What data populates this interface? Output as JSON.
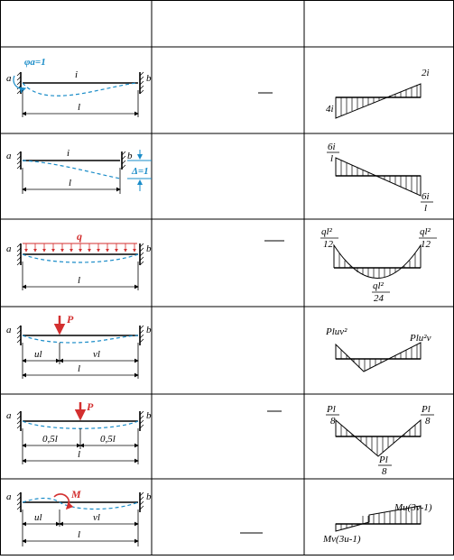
{
  "header": {
    "col1": "",
    "col2": "",
    "col3": ""
  },
  "rows": [
    {
      "labels": {
        "a": "a",
        "b": "b",
        "i": "i",
        "l": "l",
        "rotation": "φa=1"
      },
      "moments": {
        "left": "4i",
        "right": "2i"
      }
    },
    {
      "labels": {
        "a": "a",
        "b": "b",
        "i": "i",
        "l": "l",
        "displacement": "Δ=1"
      },
      "moments": {
        "left_num": "6i",
        "left_den": "l",
        "right_num": "6i",
        "right_den": "l"
      }
    },
    {
      "labels": {
        "a": "a",
        "b": "b",
        "load": "q",
        "l": "l"
      },
      "moments": {
        "left_num": "ql²",
        "left_den": "12",
        "right_num": "ql²",
        "right_den": "12",
        "mid_num": "ql²",
        "mid_den": "24"
      }
    },
    {
      "labels": {
        "a": "a",
        "b": "b",
        "load": "P",
        "left_seg": "ul",
        "right_seg": "vl",
        "l": "l"
      },
      "moments": {
        "left": "Pluv²",
        "right": "Plu²v"
      }
    },
    {
      "labels": {
        "a": "a",
        "b": "b",
        "load": "P",
        "left_seg": "0,5l",
        "right_seg": "0,5l",
        "l": "l"
      },
      "moments": {
        "left_num": "Pl",
        "left_den": "8",
        "right_num": "Pl",
        "right_den": "8",
        "mid_num": "Pl",
        "mid_den": "8"
      }
    },
    {
      "labels": {
        "a": "a",
        "b": "b",
        "load": "M",
        "left_seg": "ul",
        "right_seg": "vl",
        "l": "l"
      },
      "moments": {
        "left": "Mv(3u-1)",
        "right": "Mu(3v-1)"
      }
    }
  ]
}
